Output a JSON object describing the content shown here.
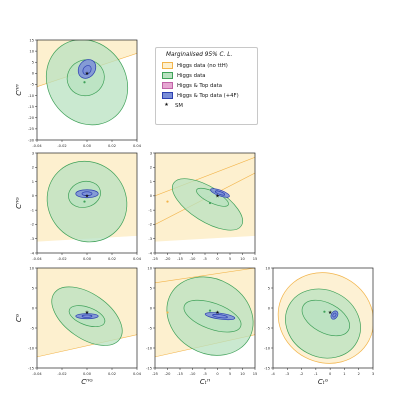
{
  "chart_data": {
    "type": "contour",
    "series": [
      {
        "name": "Higgs data (no ttH)",
        "color": "#fdf0cf",
        "edge": "#f2b44a"
      },
      {
        "name": "Higgs data",
        "color": "#b8e2c0",
        "edge": "#3fa159"
      },
      {
        "name": "Higgs & Top data",
        "color": "#e6a6d2",
        "edge": "#c062a6"
      },
      {
        "name": "Higgs & Top data (+4F)",
        "color": "#7a8ed8",
        "edge": "#2c3fb0"
      },
      {
        "name": "SM",
        "color": "#111111"
      }
    ],
    "legend_title": "Marginalised 95% C. L.",
    "legend_position": "upper-right of grid",
    "panels": [
      {
        "row": 0,
        "col": 0,
        "xvar": "",
        "yvar": "C_HH",
        "xlabel": "",
        "ylabel": "Cᴴᴴ",
        "xlim": [
          -0.04,
          0.04
        ],
        "ylim": [
          -30,
          15
        ],
        "xticks": [
          "-0.04",
          "-0.02",
          "0.00",
          "0.02",
          "0.04"
        ],
        "yticks": [
          "-30",
          "-25",
          "-20",
          "-15",
          "-10",
          "-5",
          "0",
          "5",
          "10",
          "15"
        ],
        "region_boundary": [
          [
            -0.04,
            -6
          ],
          [
            0.04,
            9
          ],
          [
            0.04,
            15
          ],
          [
            -0.04,
            15
          ]
        ],
        "boundary_lines": [
          {
            "points": [
              [
                -0.04,
                -6
              ],
              [
                0.04,
                9
              ]
            ]
          }
        ],
        "ellipses": [
          {
            "series": 1,
            "cx": 0.0,
            "cy": -4,
            "rx": 0.031,
            "ry": 20,
            "angle": -35
          },
          {
            "series": 1,
            "cx": -0.001,
            "cy": -2,
            "rx": 0.015,
            "ry": 8,
            "angle": -25
          },
          {
            "series": 3,
            "cx": 0.0,
            "cy": 2,
            "rx": 0.0065,
            "ry": 4.5,
            "angle": 35
          },
          {
            "series": 3,
            "cx": 0.0,
            "cy": 1.5,
            "rx": 0.003,
            "ry": 2.2,
            "angle": 35
          }
        ],
        "points": [
          {
            "series": 4,
            "x": 0,
            "y": 0
          },
          {
            "series": 1,
            "x": -0.002,
            "y": -4
          }
        ]
      },
      {
        "row": 1,
        "col": 0,
        "xvar": "",
        "yvar": "C_HG",
        "xlabel": "",
        "ylabel": "Cᴴᴳ",
        "xlim": [
          -0.04,
          0.04
        ],
        "ylim": [
          -4,
          3
        ],
        "xticks": [
          "-0.04",
          "-0.02",
          "0.00",
          "0.02",
          "0.04"
        ],
        "yticks": [
          "-4",
          "-3",
          "-2",
          "-1",
          "0",
          "1",
          "2",
          "3"
        ],
        "region_boundary": [
          [
            -0.04,
            -3.2
          ],
          [
            0.04,
            -2.8
          ],
          [
            0.04,
            3
          ],
          [
            -0.04,
            3
          ]
        ],
        "boundary_lines": [],
        "ellipses": [
          {
            "series": 1,
            "cx": 0.0,
            "cy": -0.4,
            "rx": 0.031,
            "ry": 2.9,
            "angle": -40
          },
          {
            "series": 1,
            "cx": -0.002,
            "cy": 0.1,
            "rx": 0.013,
            "ry": 0.9,
            "angle": -15
          },
          {
            "series": 3,
            "cx": 0.0,
            "cy": 0.15,
            "rx": 0.009,
            "ry": 0.28,
            "angle": 0
          },
          {
            "series": 3,
            "cx": 0.0,
            "cy": 0.15,
            "rx": 0.004,
            "ry": 0.14,
            "angle": 0
          }
        ],
        "points": [
          {
            "series": 4,
            "x": 0,
            "y": 0
          },
          {
            "series": 1,
            "x": -0.002,
            "y": -0.4
          }
        ]
      },
      {
        "row": 1,
        "col": 1,
        "xvar": "",
        "yvar": "",
        "xlabel": "",
        "ylabel": "",
        "xlim": [
          -25,
          15
        ],
        "ylim": [
          -4,
          3
        ],
        "xticks": [
          "-25",
          "-20",
          "-15",
          "-10",
          "-5",
          "0",
          "5",
          "10",
          "15"
        ],
        "yticks": [
          "-4",
          "-3",
          "-2",
          "-1",
          "0",
          "1",
          "2",
          "3"
        ],
        "region_boundary": [
          [
            -25,
            -3.2
          ],
          [
            15,
            -2.8
          ],
          [
            15,
            3
          ],
          [
            -25,
            3
          ]
        ],
        "boundary_lines": [
          {
            "points": [
              [
                -25,
                -2.0
              ],
              [
                15,
                1.6
              ]
            ]
          },
          {
            "points": [
              [
                -25,
                0.0
              ],
              [
                15,
                2.7
              ]
            ]
          }
        ],
        "ellipses": [
          {
            "series": 1,
            "cx": -4,
            "cy": -0.6,
            "rx": 16,
            "ry": 1.2,
            "angle": 32
          },
          {
            "series": 1,
            "cx": -2,
            "cy": -0.1,
            "rx": 7,
            "ry": 0.4,
            "angle": 25
          },
          {
            "series": 3,
            "cx": 1,
            "cy": 0.2,
            "rx": 4,
            "ry": 0.2,
            "angle": 20
          },
          {
            "series": 3,
            "cx": 1,
            "cy": 0.2,
            "rx": 2,
            "ry": 0.1,
            "angle": 20
          }
        ],
        "points": [
          {
            "series": 4,
            "x": 0,
            "y": 0
          },
          {
            "series": 1,
            "x": -3,
            "y": -0.5
          },
          {
            "series": 0,
            "x": -20,
            "y": -0.4
          }
        ]
      },
      {
        "row": 2,
        "col": 0,
        "xvar": "C_HG",
        "yvar": "C_G",
        "xlabel": "Cᴴᴳ",
        "ylabel": "Cᴳ",
        "xlim": [
          -0.04,
          0.04
        ],
        "ylim": [
          -15,
          12
        ],
        "xticks": [
          "-0.04",
          "-0.02",
          "0.00",
          "0.02",
          "0.04"
        ],
        "yticks": [
          "-15",
          "-10",
          "-5",
          "0",
          "5",
          "10"
        ],
        "region_boundary": [
          [
            -0.04,
            -12
          ],
          [
            0.04,
            -6
          ],
          [
            0.04,
            12
          ],
          [
            -0.04,
            12
          ]
        ],
        "boundary_lines": [
          {
            "points": [
              [
                -0.04,
                -12
              ],
              [
                0.04,
                -6
              ]
            ]
          }
        ],
        "ellipses": [
          {
            "series": 1,
            "cx": 0.0,
            "cy": -1,
            "rx": 0.032,
            "ry": 6,
            "angle": 35
          },
          {
            "series": 1,
            "cx": 0.0,
            "cy": -1,
            "rx": 0.015,
            "ry": 2.4,
            "angle": 20
          },
          {
            "series": 3,
            "cx": 0.0,
            "cy": -1,
            "rx": 0.009,
            "ry": 0.7,
            "angle": 0
          },
          {
            "series": 3,
            "cx": 0.0,
            "cy": -1,
            "rx": 0.004,
            "ry": 0.35,
            "angle": 0
          }
        ],
        "points": [
          {
            "series": 4,
            "x": 0,
            "y": 0
          }
        ]
      },
      {
        "row": 2,
        "col": 1,
        "xvar": "C_tH",
        "yvar": "",
        "xlabel": "Cₜᴴ",
        "ylabel": "",
        "xlim": [
          -25,
          15
        ],
        "ylim": [
          -15,
          12
        ],
        "xticks": [
          "-25",
          "-20",
          "-15",
          "-10",
          "-5",
          "0",
          "5",
          "10",
          "15"
        ],
        "yticks": [
          "-15",
          "-10",
          "-5",
          "0",
          "5",
          "10"
        ],
        "region_boundary": [
          [
            -25,
            -12
          ],
          [
            15,
            -6
          ],
          [
            15,
            12
          ],
          [
            -25,
            12
          ]
        ],
        "boundary_lines": [
          {
            "points": [
              [
                -25,
                -12
              ],
              [
                15,
                -6
              ]
            ]
          },
          {
            "points": [
              [
                -25,
                8
              ],
              [
                15,
                12
              ]
            ]
          }
        ],
        "ellipses": [
          {
            "series": 1,
            "cx": -3,
            "cy": -1,
            "rx": 18,
            "ry": 10,
            "angle": 30
          },
          {
            "series": 1,
            "cx": -2,
            "cy": -1,
            "rx": 12,
            "ry": 3.5,
            "angle": 20
          },
          {
            "series": 3,
            "cx": 1,
            "cy": -1,
            "rx": 6,
            "ry": 0.8,
            "angle": 8
          },
          {
            "series": 3,
            "cx": 1,
            "cy": -1,
            "rx": 3,
            "ry": 0.4,
            "angle": 8
          }
        ],
        "points": [
          {
            "series": 4,
            "x": 0,
            "y": 0
          },
          {
            "series": 1,
            "x": -3,
            "y": 0.5
          },
          {
            "series": 0,
            "x": -20,
            "y": 0
          }
        ]
      },
      {
        "row": 2,
        "col": 2,
        "xvar": "C_tG",
        "yvar": "",
        "xlabel": "Cₜᴳ",
        "ylabel": "",
        "xlim": [
          -4,
          3
        ],
        "ylim": [
          -15,
          12
        ],
        "xticks": [
          "-4",
          "-3",
          "-2",
          "-1",
          "0",
          "1",
          "2",
          "3"
        ],
        "yticks": [
          "-15",
          "-10",
          "-5",
          "0",
          "5",
          "10"
        ],
        "region_boundary": [],
        "boundary_lines": [],
        "ellipses": [
          {
            "series": 0,
            "cx": -0.3,
            "cy": -1.5,
            "rx": 3.4,
            "ry": 12,
            "angle": 28
          },
          {
            "series": 1,
            "cx": -0.5,
            "cy": -3,
            "rx": 2.7,
            "ry": 9,
            "angle": 28
          },
          {
            "series": 1,
            "cx": -0.3,
            "cy": -1.5,
            "rx": 1.8,
            "ry": 4,
            "angle": 28
          },
          {
            "series": 3,
            "cx": 0.3,
            "cy": -0.7,
            "rx": 0.22,
            "ry": 1.2,
            "angle": 30
          },
          {
            "series": 3,
            "cx": 0.3,
            "cy": -0.7,
            "rx": 0.1,
            "ry": 0.6,
            "angle": 30
          }
        ],
        "points": [
          {
            "series": 4,
            "x": 0,
            "y": 0
          },
          {
            "series": 1,
            "x": -0.4,
            "y": 0.2
          }
        ]
      }
    ]
  }
}
